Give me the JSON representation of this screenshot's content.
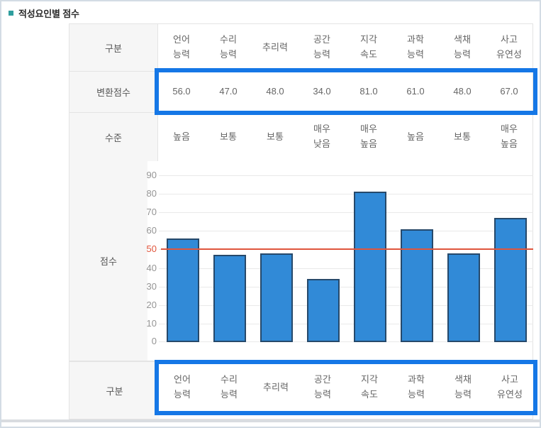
{
  "page": {
    "title": "적성요인별 점수"
  },
  "table": {
    "corner_label": "구분",
    "row_labels": {
      "converted_score": "변환점수",
      "level": "수준",
      "score": "점수",
      "bottom_category": "구분"
    },
    "column_headers": [
      "언어\n능력",
      "수리\n능력",
      "추리력",
      "공간\n능력",
      "지각\n속도",
      "과학\n능력",
      "색채\n능력",
      "사고\n유연성"
    ],
    "converted_scores": [
      "56.0",
      "47.0",
      "48.0",
      "34.0",
      "81.0",
      "61.0",
      "48.0",
      "67.0"
    ],
    "levels": [
      "높음",
      "보통",
      "보통",
      "매우\n낮음",
      "매우\n높음",
      "높음",
      "보통",
      "매우\n높음"
    ]
  },
  "chart_data": {
    "type": "bar",
    "categories": [
      "언어능력",
      "수리능력",
      "추리력",
      "공간능력",
      "지각속도",
      "과학능력",
      "색채능력",
      "사고유연성"
    ],
    "values": [
      56.0,
      47.0,
      48.0,
      34.0,
      81.0,
      61.0,
      48.0,
      67.0
    ],
    "title": "",
    "xlabel": "구분",
    "ylabel": "점수",
    "ylim": [
      0,
      90
    ],
    "yticks": [
      0,
      10,
      20,
      30,
      40,
      50,
      60,
      70,
      80,
      90
    ],
    "grid": true,
    "legend_position": "none",
    "reference_line": {
      "value": 50,
      "color": "#e0553c"
    },
    "bar_color": "#318ad7",
    "bar_border_color": "#26496b",
    "highlight_tick": 50
  },
  "colors": {
    "highlight_border": "#1577e6",
    "accent_bullet": "#2f9e9e",
    "table_border": "#e4e4e4",
    "header_bg": "#f6f6f6",
    "bar_fill": "#318ad7",
    "bar_border": "#26496b",
    "reference_line": "#e0553c",
    "frame_border": "#d3dce4"
  }
}
